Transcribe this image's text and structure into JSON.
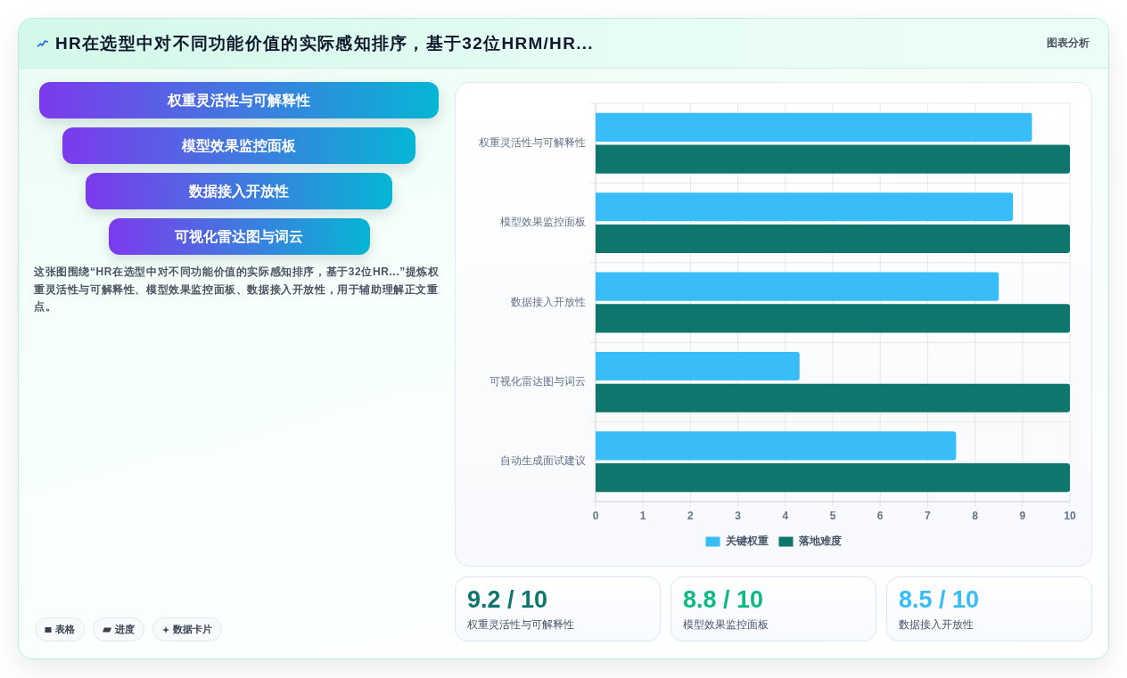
{
  "chart_data": [
    {
      "type": "other",
      "title": "HR在选型中对不同功能价值的实际感知排序，基于32位HRM/HR...",
      "annotations": [
        "图表分析",
        "权重灵活性与可解释性",
        "模型效果监控面板",
        "数据接入开放性",
        "可视化雷达图与词云",
        "这张图围绕“HR在选型中对不同功能价值的实际感知排序，基于32位HR...”提炼权重灵活性与可解释性、模型效果监控面板、数据接入开放性，用于辅助理解正文重点。",
        "表格",
        "进度",
        "数据卡片"
      ]
    },
    {
      "type": "bar",
      "orientation": "horizontal",
      "categories": [
        "权重灵活性与可解释性",
        "模型效果监控面板",
        "数据接入开放性",
        "可视化雷达图与词云",
        "自动生成面试建议"
      ],
      "series": [
        {
          "name": "关键权重",
          "color": "#38bdf8",
          "values": [
            9.2,
            8.8,
            8.5,
            4.3,
            7.6
          ]
        },
        {
          "name": "落地难度",
          "color": "#0f766e",
          "values": [
            10,
            10,
            10,
            10,
            10
          ]
        }
      ],
      "xlim": [
        0,
        10
      ],
      "xticks": [
        0,
        1,
        2,
        3,
        4,
        5,
        6,
        7,
        8,
        9,
        10
      ],
      "grid": true,
      "legend": "bottom"
    },
    {
      "type": "other",
      "categories": [
        "权重灵活性与可解释性",
        "模型效果监控面板",
        "数据接入开放性"
      ],
      "value_labels": [
        "9.2 / 10",
        "8.8 / 10",
        "8.5 / 10"
      ]
    }
  ]
}
